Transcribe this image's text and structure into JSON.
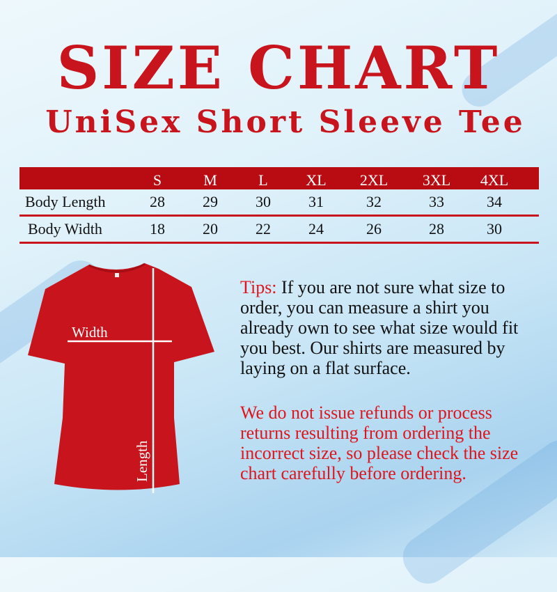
{
  "title": "SIZE CHART",
  "subtitle": "UniSex Short Sleeve Tee",
  "size_table": {
    "columns": [
      "S",
      "M",
      "L",
      "XL",
      "2XL",
      "3XL",
      "4XL"
    ],
    "rows": [
      {
        "label": "Body Length",
        "values": [
          "28",
          "29",
          "30",
          "31",
          "32",
          "33",
          "34"
        ]
      },
      {
        "label": "Body Width",
        "values": [
          "18",
          "20",
          "22",
          "24",
          "26",
          "28",
          "30"
        ]
      }
    ]
  },
  "shirt": {
    "width_label": "Width",
    "length_label": "Length",
    "color": "#c8141c"
  },
  "tips": {
    "label": "Tips:",
    "text": "If you are not sure what size to order, you can measure a shirt you already own to see what size would fit you best. Our shirts are measured by laying on a flat surface."
  },
  "notice": "We do not issue refunds or process returns resulting from ordering the incorrect size, so please check the size chart carefully before ordering.",
  "colors": {
    "accent": "#c8141c",
    "header_bg": "#b80c12"
  }
}
